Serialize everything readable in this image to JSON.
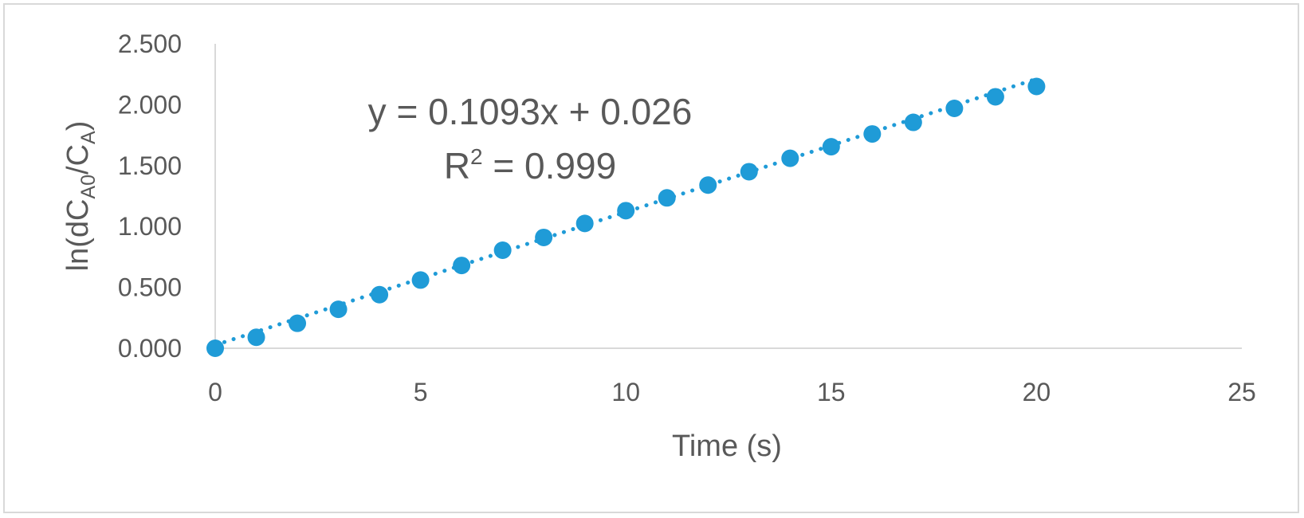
{
  "chart_data": {
    "type": "scatter",
    "xlabel": "Time (s)",
    "ylabel_parts": {
      "prefix": "ln(dC",
      "sub1": "A0",
      "middle": "/C",
      "sub2": "A",
      "suffix": ")"
    },
    "xlim": [
      0,
      25
    ],
    "ylim": [
      0,
      2.5
    ],
    "xticks": [
      "0",
      "5",
      "10",
      "15",
      "20",
      "25"
    ],
    "yticks": [
      "0.000",
      "0.500",
      "1.000",
      "1.500",
      "2.000",
      "2.500"
    ],
    "grid": false,
    "legend": "none",
    "marker_color": "#1f9bd7",
    "trendline": {
      "type": "linear",
      "style": "dotted",
      "slope": 0.1093,
      "intercept": 0.026,
      "equation_text": "y = 0.1093x + 0.026",
      "r2_prefix": "R",
      "r2_sup": "2",
      "r2_value": " = 0.999"
    },
    "points": [
      {
        "x": 0,
        "y": 0.0
      },
      {
        "x": 1,
        "y": 0.09
      },
      {
        "x": 2,
        "y": 0.205
      },
      {
        "x": 3,
        "y": 0.32
      },
      {
        "x": 4,
        "y": 0.44
      },
      {
        "x": 5,
        "y": 0.56
      },
      {
        "x": 6,
        "y": 0.68
      },
      {
        "x": 7,
        "y": 0.805
      },
      {
        "x": 8,
        "y": 0.91
      },
      {
        "x": 9,
        "y": 1.025
      },
      {
        "x": 10,
        "y": 1.13
      },
      {
        "x": 11,
        "y": 1.235
      },
      {
        "x": 12,
        "y": 1.34
      },
      {
        "x": 13,
        "y": 1.45
      },
      {
        "x": 14,
        "y": 1.56
      },
      {
        "x": 15,
        "y": 1.655
      },
      {
        "x": 16,
        "y": 1.76
      },
      {
        "x": 17,
        "y": 1.855
      },
      {
        "x": 18,
        "y": 1.97
      },
      {
        "x": 19,
        "y": 2.065
      },
      {
        "x": 20,
        "y": 2.15
      }
    ]
  }
}
